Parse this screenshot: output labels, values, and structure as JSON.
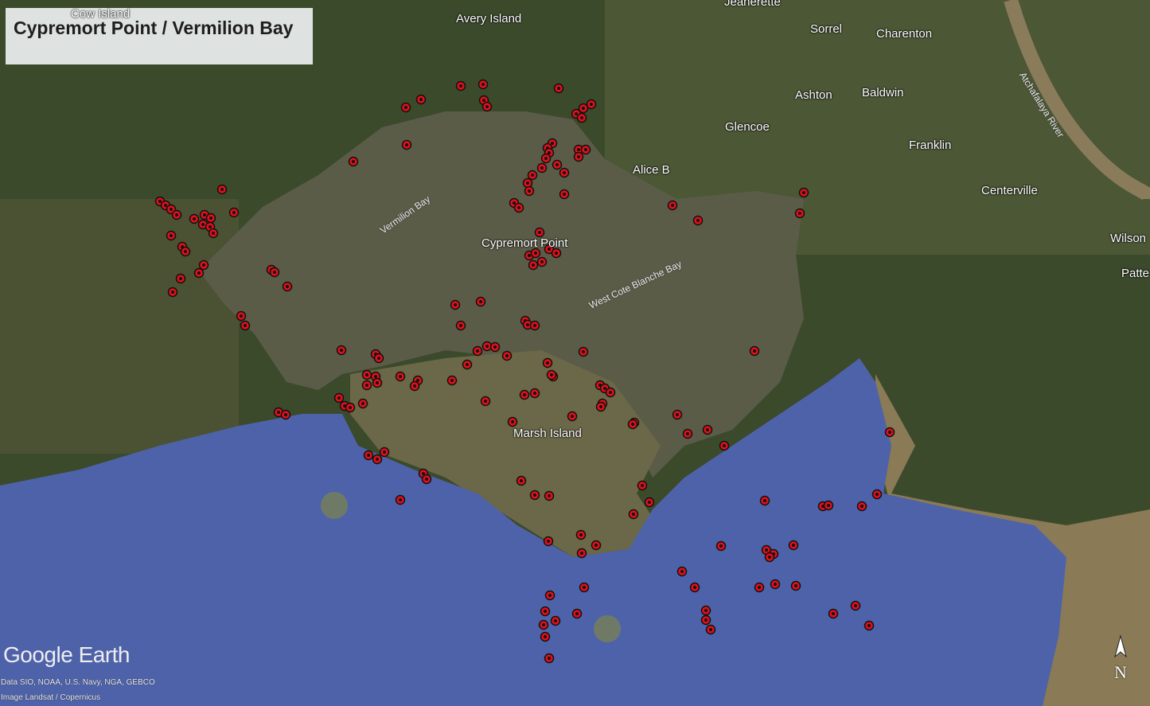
{
  "title": "Cypremort Point / Vermilion Bay",
  "places": [
    {
      "id": "cow-island",
      "label": "Cow Island"
    },
    {
      "id": "avery-island",
      "label": "Avery Island"
    },
    {
      "id": "jeanerette",
      "label": "Jeanerette"
    },
    {
      "id": "sorrel",
      "label": "Sorrel"
    },
    {
      "id": "charenton",
      "label": "Charenton"
    },
    {
      "id": "ashton",
      "label": "Ashton"
    },
    {
      "id": "baldwin",
      "label": "Baldwin"
    },
    {
      "id": "glencoe",
      "label": "Glencoe"
    },
    {
      "id": "franklin",
      "label": "Franklin"
    },
    {
      "id": "alice-b",
      "label": "Alice B"
    },
    {
      "id": "centerville",
      "label": "Centerville"
    },
    {
      "id": "wilson",
      "label": "Wilson"
    },
    {
      "id": "patte",
      "label": "Patte"
    },
    {
      "id": "cypremort-point",
      "label": "Cypremort Point"
    },
    {
      "id": "marsh-island",
      "label": "Marsh Island"
    }
  ],
  "water_labels": [
    {
      "id": "vermilion-bay",
      "label": "Vermilion Bay"
    },
    {
      "id": "west-cote-blanche-bay",
      "label": "West Cote Blanche Bay"
    },
    {
      "id": "atchafalaya-river",
      "label": "Atchafalaya River"
    }
  ],
  "branding": {
    "logo": "Google Earth",
    "data_credit": "Data SIO, NOAA, U.S. Navy, NGA, GEBCO",
    "image_credit": "Image Landsat / Copernicus"
  },
  "north_arrow": {
    "label": "N",
    "icon": "north-arrow-icon"
  },
  "marker_style": {
    "fill": "#e0101a",
    "stroke": "#111111"
  },
  "colors": {
    "land": "#3c4a2c",
    "bay": "#5b5c48",
    "gulf": "#4e62aa",
    "marsh": "#6a6848"
  }
}
